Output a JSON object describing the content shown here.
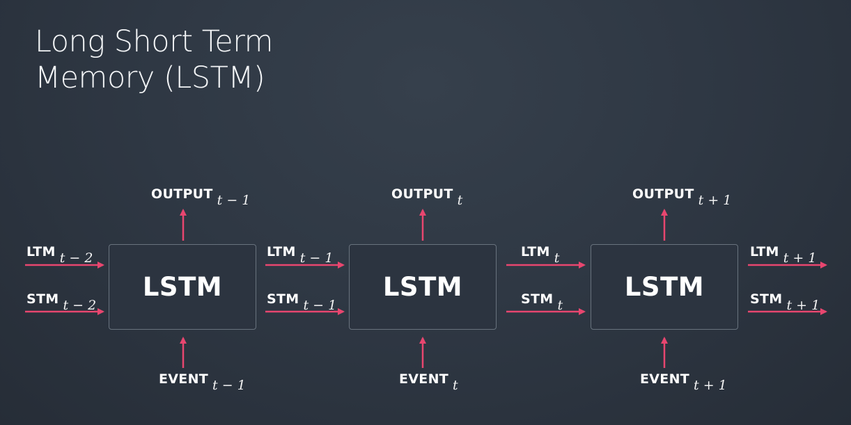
{
  "title": {
    "line1": "Long Short Term",
    "line2": "Memory (LSTM)"
  },
  "cells": [
    {
      "label": "LSTM"
    },
    {
      "label": "LSTM"
    },
    {
      "label": "LSTM"
    }
  ],
  "outputs": [
    {
      "main": "OUTPUT",
      "sub": "t − 1"
    },
    {
      "main": "OUTPUT",
      "sub": "t"
    },
    {
      "main": "OUTPUT",
      "sub": "t + 1"
    }
  ],
  "events": [
    {
      "main": "EVENT",
      "sub": "t − 1"
    },
    {
      "main": "EVENT",
      "sub": "t"
    },
    {
      "main": "EVENT",
      "sub": "t + 1"
    }
  ],
  "ltm": [
    {
      "main": "LTM",
      "sub": "t − 2"
    },
    {
      "main": "LTM",
      "sub": "t − 1"
    },
    {
      "main": "LTM",
      "sub": "t"
    },
    {
      "main": "LTM",
      "sub": "t + 1"
    }
  ],
  "stm": [
    {
      "main": "STM",
      "sub": "t − 2"
    },
    {
      "main": "STM",
      "sub": "t − 1"
    },
    {
      "main": "STM",
      "sub": "t"
    },
    {
      "main": "STM",
      "sub": "t + 1"
    }
  ],
  "colors": {
    "arrow": "#e8466f",
    "box_border": "#69737e",
    "text": "#ffffff"
  }
}
